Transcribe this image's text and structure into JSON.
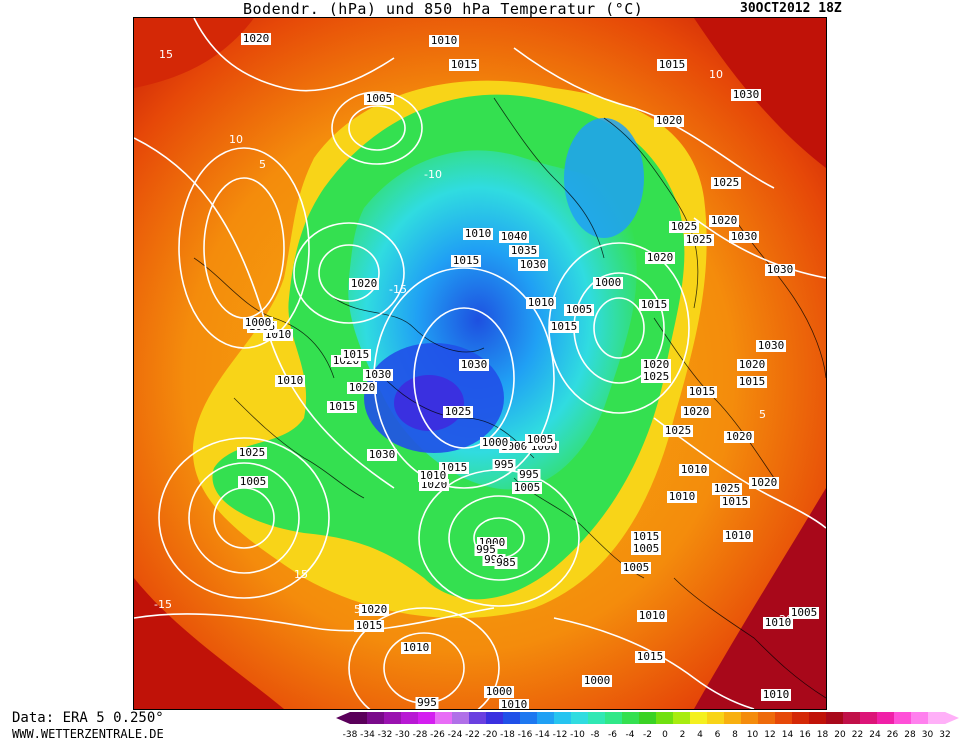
{
  "title": "Bodendr. (hPa) und 850 hPa Temperatur (°C)",
  "timestamp": "30OCT2012 18Z",
  "source": "Data: ERA 5 0.250°",
  "website": "WWW.WETTERZENTRALE.DE",
  "colorscale": {
    "unit": "°C",
    "ticks": [
      "-38",
      "-34",
      "-32",
      "-30",
      "-28",
      "-26",
      "-24",
      "-22",
      "-20",
      "-18",
      "-16",
      "-14",
      "-12",
      "-10",
      "-8",
      "-6",
      "-4",
      "-2",
      "0",
      "2",
      "4",
      "6",
      "8",
      "10",
      "12",
      "14",
      "16",
      "18",
      "20",
      "22",
      "24",
      "26",
      "28",
      "30",
      "32"
    ],
    "colors": [
      "#5a005a",
      "#7a0a8a",
      "#9a12b0",
      "#b818d4",
      "#d41ef0",
      "#e86cf6",
      "#b070e8",
      "#6a40e0",
      "#3a30e0",
      "#2050e8",
      "#1e78f0",
      "#20a0f4",
      "#26c4f0",
      "#30dce0",
      "#30e8b4",
      "#30e888",
      "#34e050",
      "#3ad224",
      "#70e010",
      "#a8ec10",
      "#f4f020",
      "#f8d418",
      "#f8b010",
      "#f48c0c",
      "#ee6a0a",
      "#e64808",
      "#d42806",
      "#c01208",
      "#a8081a",
      "#c01048",
      "#dc1478",
      "#f020a8",
      "#ff50d8",
      "#ff80ee",
      "#ffb0f8"
    ]
  },
  "isobar_labels": [
    "1020",
    "1010",
    "1015",
    "1005",
    "1015",
    "1020",
    "1025",
    "1030",
    "1020",
    "1015",
    "1010",
    "1020",
    "1025",
    "1025",
    "1030",
    "1040",
    "1035",
    "1030",
    "1020",
    "1015",
    "1010",
    "1005",
    "1000",
    "1015",
    "1020",
    "1025",
    "1030",
    "1030",
    "1025",
    "1020",
    "1015",
    "1010",
    "1005",
    "1000",
    "995",
    "1020",
    "1015",
    "1010",
    "1025",
    "1030",
    "1020",
    "1015",
    "1010",
    "1005",
    "1000",
    "995",
    "1000",
    "1005",
    "1010",
    "1015",
    "1020",
    "1025",
    "1030",
    "1015",
    "1020",
    "1025",
    "1010",
    "1015",
    "1020",
    "1030",
    "1020",
    "1015",
    "1010",
    "1020",
    "1015",
    "1010",
    "1005",
    "1000",
    "995",
    "1000",
    "1010",
    "1005",
    "1010",
    "1015",
    "1010",
    "1005",
    "1010",
    "1000",
    "995",
    "990",
    "985",
    "1005",
    "1000"
  ]
}
